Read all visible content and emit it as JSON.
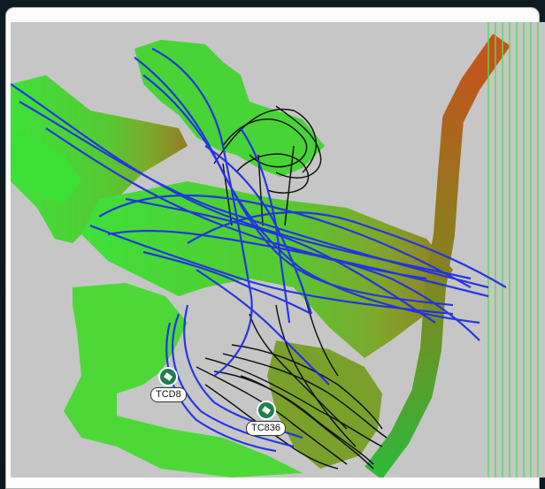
{
  "map": {
    "markers": [
      {
        "label": "TCD8"
      },
      {
        "label": "TC836"
      }
    ],
    "colors": {
      "background": "#c6c6c6",
      "green": "#3fd83f",
      "track_blue": "#1f2fe6",
      "track_black": "#0b0b0b",
      "road_orange": "#c4541d",
      "grid_lines": "#4ee04e"
    }
  }
}
